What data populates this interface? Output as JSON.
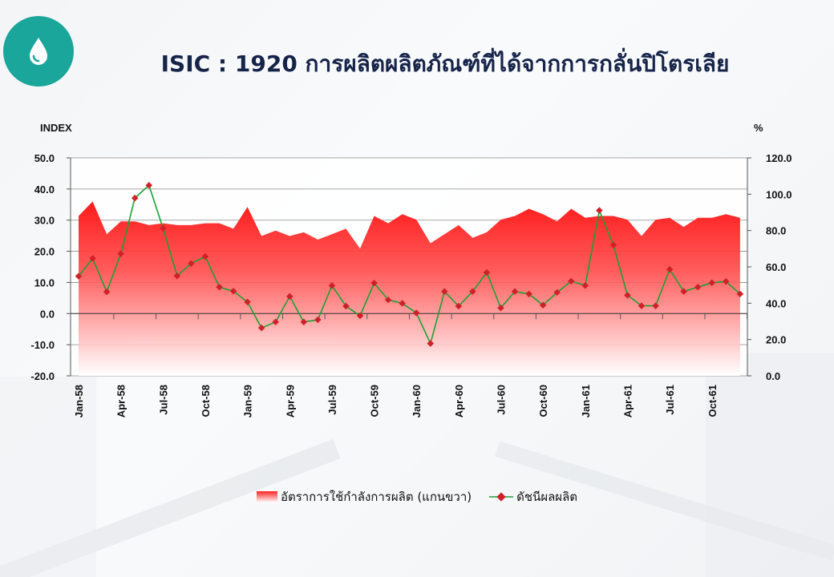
{
  "header": {
    "title": "ISIC : 1920 การผลิตผลิตภัณฑ์ที่ได้จากการกลั่นปิโตรเลีย",
    "logo_icon": "oil-drop-icon"
  },
  "colors": {
    "area_top": "#ff2020",
    "area_bottom": "#ffffff",
    "line": "#1aa032",
    "marker": "#d02028",
    "logo_bg": "#1aa69a",
    "title": "#16244a"
  },
  "chart_data": {
    "type": "area+line",
    "left_axis_unit": "INDEX",
    "right_axis_unit": "%",
    "left_ylim": [
      -20,
      50
    ],
    "right_ylim": [
      0,
      120
    ],
    "left_ticks": [
      "50.0",
      "40.0",
      "30.0",
      "20.0",
      "10.0",
      "0.0",
      "-10.0",
      "-20.0"
    ],
    "right_ticks": [
      "120.0",
      "100.0",
      "80.0",
      "60.0",
      "40.0",
      "20.0",
      "0.0"
    ],
    "x_tick_labels": [
      "Jan-58",
      "Apr-58",
      "Jul-58",
      "Oct-58",
      "Jan-59",
      "Apr-59",
      "Jul-59",
      "Oct-59",
      "Jan-60",
      "Apr-60",
      "Jul-60",
      "Oct-60",
      "Jan-61",
      "Apr-61",
      "Jul-61",
      "Oct-61"
    ],
    "grid": true,
    "legend_position": "bottom",
    "series": [
      {
        "name": "อัตราการใช้กำลังการผลิต (แกนขวา)",
        "type": "area",
        "axis": "right",
        "values": [
          88,
          96,
          78,
          85,
          85,
          83,
          84,
          83,
          83,
          84,
          84,
          81,
          93,
          77,
          80,
          77,
          79,
          75,
          78,
          81,
          70,
          88,
          84,
          89,
          86,
          73,
          78,
          83,
          76,
          79,
          86,
          88,
          92,
          89,
          85,
          92,
          87,
          88,
          88,
          86,
          77,
          86,
          87,
          82,
          87,
          87,
          89,
          87
        ]
      },
      {
        "name": "ดัชนีผลผลิต",
        "type": "line",
        "axis": "left",
        "values": [
          12.0,
          17.7,
          7.0,
          19.2,
          37.1,
          41.2,
          27.4,
          12.1,
          16.1,
          18.3,
          8.5,
          7.2,
          3.7,
          -4.6,
          -2.7,
          5.5,
          -2.7,
          -2.0,
          9.0,
          2.4,
          -0.7,
          9.8,
          4.4,
          3.3,
          0.2,
          -9.6,
          7.1,
          2.4,
          7.1,
          13.2,
          1.8,
          7.1,
          6.3,
          2.7,
          6.8,
          10.4,
          9.0,
          33.1,
          22.0,
          5.9,
          2.5,
          2.5,
          14.2,
          7.1,
          8.5,
          9.9,
          10.3,
          6.3
        ]
      }
    ]
  }
}
